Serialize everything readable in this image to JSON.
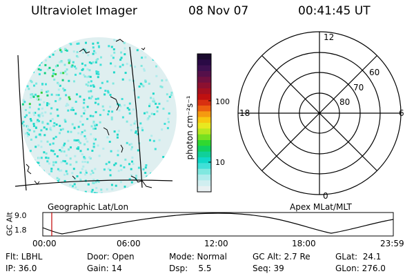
{
  "header": {
    "instrument": "Ultraviolet Imager",
    "date": "08 Nov 07",
    "time": "00:41:45 UT"
  },
  "colorbar": {
    "unit_label": "photon cm⁻²s⁻¹",
    "tick_labels": [
      "100",
      "10"
    ],
    "colors": [
      "#1a0a2e",
      "#2a0a45",
      "#3d1050",
      "#55104a",
      "#701040",
      "#8c1030",
      "#a51020",
      "#c01010",
      "#d83010",
      "#ec6010",
      "#f59a10",
      "#f8c810",
      "#e8e820",
      "#b8e820",
      "#78e020",
      "#30d830",
      "#10d060",
      "#10d09a",
      "#10d8c8",
      "#40e0d8",
      "#80e8e0",
      "#b0ecec",
      "#d0eef0",
      "#e8f0f2"
    ]
  },
  "geo_panel": {
    "label": "Geographic Lat/Lon"
  },
  "polar_panel": {
    "label": "Apex MLat/MLT",
    "mlt_labels": {
      "top": "12",
      "left": "18",
      "right": "6",
      "bottom": "0"
    },
    "lat_labels": [
      "60",
      "70",
      "80"
    ]
  },
  "timeline": {
    "ylabel": "GC Alt",
    "ytick_top": "9.0",
    "ytick_bottom": "1.8",
    "xticks": [
      "00:00",
      "06:00",
      "12:00",
      "18:00",
      "23:59"
    ]
  },
  "info": {
    "filter": "Flt: LBHL",
    "door": "Door: Open",
    "mode": "Mode: Normal",
    "gc_alt": "GC Alt: 2.7 Re",
    "glat": "GLat:  24.1",
    "ip": "IP: 36.0",
    "gain": "Gain: 14",
    "dsp": "Dsp:    5.5",
    "seq": "Seq: 39",
    "glon": "GLon: 276.0"
  }
}
